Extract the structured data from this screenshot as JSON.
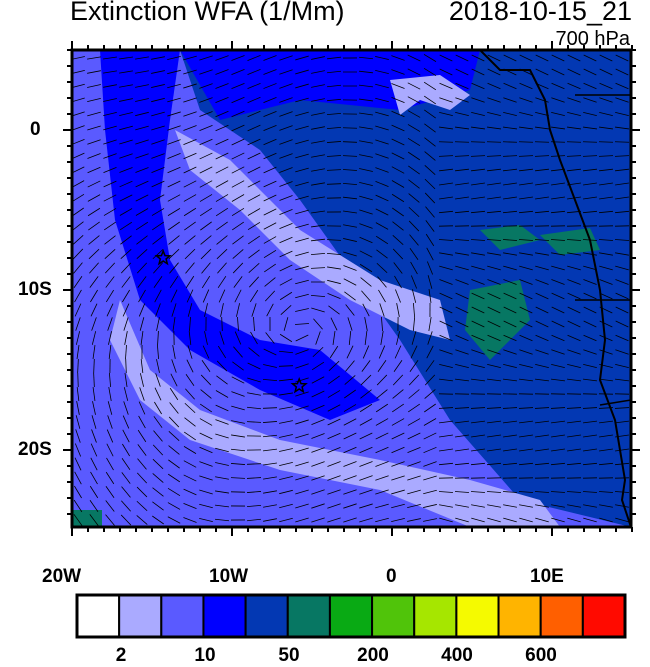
{
  "title": "Extinction WFA (1/Mm)",
  "timestamp": "2018-10-15_21",
  "level": "700 hPa",
  "map": {
    "lon_range": [
      -20,
      15
    ],
    "lat_range": [
      -25,
      5
    ],
    "x_ticks": [
      "20W",
      "10W",
      "0",
      "10E"
    ],
    "y_ticks": [
      "0",
      "10S",
      "20S"
    ],
    "markers": [
      {
        "type": "star",
        "lon": -14.3,
        "lat": -8
      },
      {
        "type": "star",
        "lon": -5.8,
        "lat": -16
      }
    ]
  },
  "colorbar": {
    "colors": [
      "#ffffff",
      "#aaaaff",
      "#5a5aff",
      "#0000ff",
      "#0338b3",
      "#077763",
      "#09aa14",
      "#50c40a",
      "#a6e600",
      "#f5fa00",
      "#ffb400",
      "#ff5f00",
      "#ff0a00"
    ],
    "labels": [
      "2",
      "10",
      "50",
      "200",
      "400",
      "600"
    ]
  }
}
